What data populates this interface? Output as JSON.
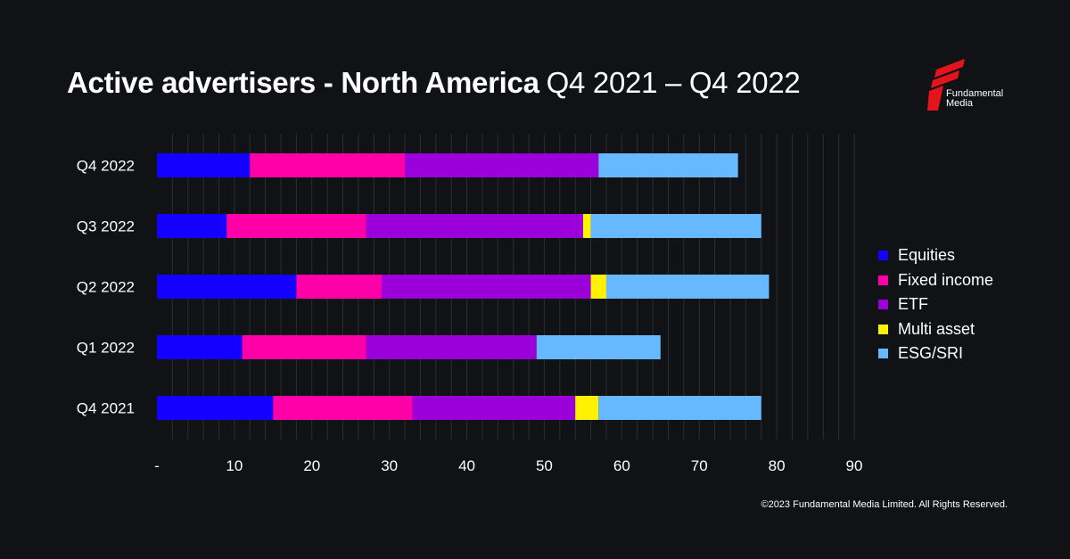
{
  "title": {
    "bold": "Active advertisers - North America",
    "light": "Q4 2021 – Q4 2022"
  },
  "logo": {
    "line1": "Fundamental",
    "line2": "Media",
    "color": "#e3141b"
  },
  "footer": "©2023 Fundamental Media Limited. All Rights Reserved.",
  "chart_data": {
    "type": "bar",
    "orientation": "horizontal",
    "stacked": true,
    "categories": [
      "Q4 2022",
      "Q3 2022",
      "Q2 2022",
      "Q1 2022",
      "Q4 2021"
    ],
    "series": [
      {
        "name": "Equities",
        "color": "#1400ff",
        "values": [
          12,
          9,
          18,
          11,
          15
        ]
      },
      {
        "name": "Fixed income",
        "color": "#ff00a8",
        "values": [
          20,
          18,
          11,
          16,
          18
        ]
      },
      {
        "name": "ETF",
        "color": "#9b00db",
        "values": [
          25,
          28,
          27,
          22,
          21
        ]
      },
      {
        "name": "Multi asset",
        "color": "#fff200",
        "values": [
          0,
          1,
          2,
          0,
          3
        ]
      },
      {
        "name": "ESG/SRI",
        "color": "#66b8ff",
        "values": [
          18,
          22,
          21,
          16,
          21
        ]
      }
    ],
    "xlim": [
      0,
      90
    ],
    "xticks": [
      0,
      10,
      20,
      30,
      40,
      50,
      60,
      70,
      80,
      90
    ],
    "xtick_labels": [
      "-",
      "10",
      "20",
      "30",
      "40",
      "50",
      "60",
      "70",
      "80",
      "90"
    ],
    "minor_grid_step": 2,
    "legend_position": "right",
    "xlabel": "",
    "ylabel": ""
  }
}
